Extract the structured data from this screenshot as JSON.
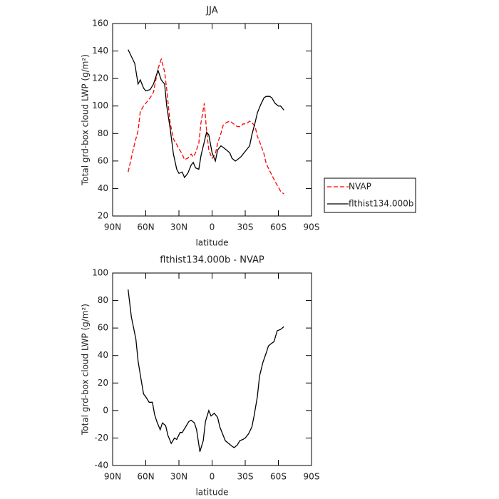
{
  "chart_data": [
    {
      "type": "line",
      "title": "JJA",
      "xlabel": "latitude",
      "ylabel": "Total grd-box cloud LWP (g/m²)",
      "xlim": [
        90,
        -90
      ],
      "xticks": [
        {
          "value": 90,
          "label": "90N"
        },
        {
          "value": 60,
          "label": "60N"
        },
        {
          "value": 30,
          "label": "30N"
        },
        0,
        {
          "value": -30,
          "label": "30S"
        },
        {
          "value": -60,
          "label": "60S"
        },
        {
          "value": -90,
          "label": "90S"
        }
      ],
      "ylim": [
        20,
        160
      ],
      "yticks": [
        20,
        40,
        60,
        80,
        100,
        120,
        140,
        160
      ],
      "legend": "right",
      "x": [
        76,
        70,
        67,
        65,
        62,
        60,
        56,
        53,
        49,
        46,
        43,
        41,
        38,
        35,
        32,
        30,
        27,
        25,
        22,
        19,
        17,
        15,
        12,
        10,
        7,
        5,
        3,
        0,
        -3,
        -5,
        -8,
        -10,
        -13,
        -16,
        -18,
        -21,
        -23,
        -26,
        -28,
        -31,
        -34,
        -36,
        -39,
        -41,
        -44,
        -47,
        -49,
        -52,
        -54,
        -57,
        -60,
        -62,
        -65
      ],
      "series": [
        {
          "name": "NVAP",
          "color": "#ff0000",
          "line_style": "dashed",
          "values": [
            52,
            73,
            82,
            96,
            100,
            102,
            106,
            110,
            127,
            134,
            125,
            112,
            88,
            76,
            72,
            69,
            65,
            61,
            62,
            65,
            63,
            66,
            73,
            88,
            102,
            82,
            68,
            62,
            65,
            73,
            80,
            86,
            88,
            89,
            88,
            86,
            85,
            85,
            87,
            87,
            89,
            88,
            85,
            78,
            72,
            65,
            58,
            53,
            50,
            45,
            41,
            38,
            36
          ]
        },
        {
          "name": "flthist134.000b",
          "color": "#000000",
          "line_style": "solid",
          "values": [
            141,
            131,
            116,
            119,
            113,
            111,
            112,
            116,
            126,
            119,
            116,
            100,
            84,
            65,
            54,
            51,
            52,
            48,
            51,
            57,
            59,
            55,
            54,
            64,
            74,
            81,
            79,
            66,
            60,
            68,
            71,
            70,
            68,
            66,
            62,
            60,
            61,
            63,
            65,
            68,
            71,
            79,
            88,
            95,
            101,
            106,
            107,
            107,
            106,
            102,
            100,
            100,
            97
          ]
        }
      ]
    },
    {
      "type": "line",
      "title": "flthist134.000b - NVAP",
      "xlabel": "latitude",
      "ylabel": "Total grd-box cloud LWP (g/m²)",
      "xlim": [
        90,
        -90
      ],
      "xticks": [
        {
          "value": 90,
          "label": "90N"
        },
        {
          "value": 60,
          "label": "60N"
        },
        {
          "value": 30,
          "label": "30N"
        },
        0,
        {
          "value": -30,
          "label": "30S"
        },
        {
          "value": -60,
          "label": "60S"
        },
        {
          "value": -90,
          "label": "90S"
        }
      ],
      "ylim": [
        -40,
        100
      ],
      "yticks": [
        -40,
        -20,
        0,
        20,
        40,
        60,
        80,
        100
      ],
      "x": [
        76,
        73,
        69,
        67,
        65,
        62,
        60,
        57,
        54,
        52,
        50,
        47,
        45,
        42,
        40,
        37,
        34,
        32,
        29,
        27,
        24,
        21,
        19,
        16,
        14,
        11,
        8,
        6,
        3,
        1,
        -2,
        -5,
        -7,
        -10,
        -12,
        -15,
        -18,
        -20,
        -23,
        -25,
        -28,
        -30,
        -33,
        -36,
        -38,
        -41,
        -43,
        -46,
        -49,
        -51,
        -54,
        -56,
        -59,
        -62,
        -65
      ],
      "series": [
        {
          "color": "#000000",
          "line_style": "solid",
          "values": [
            88,
            68,
            52,
            36,
            26,
            12,
            10,
            6,
            6,
            -3,
            -8,
            -14,
            -9,
            -11,
            -18,
            -24,
            -20,
            -21,
            -16,
            -16,
            -12,
            -8,
            -7,
            -9,
            -14,
            -30,
            -22,
            -8,
            0,
            -4,
            -2,
            -5,
            -12,
            -18,
            -22,
            -24,
            -26,
            -27,
            -25,
            -22,
            -21,
            -20,
            -17,
            -12,
            -4,
            10,
            25,
            35,
            42,
            47,
            49,
            50,
            58,
            59,
            61
          ]
        }
      ]
    }
  ]
}
